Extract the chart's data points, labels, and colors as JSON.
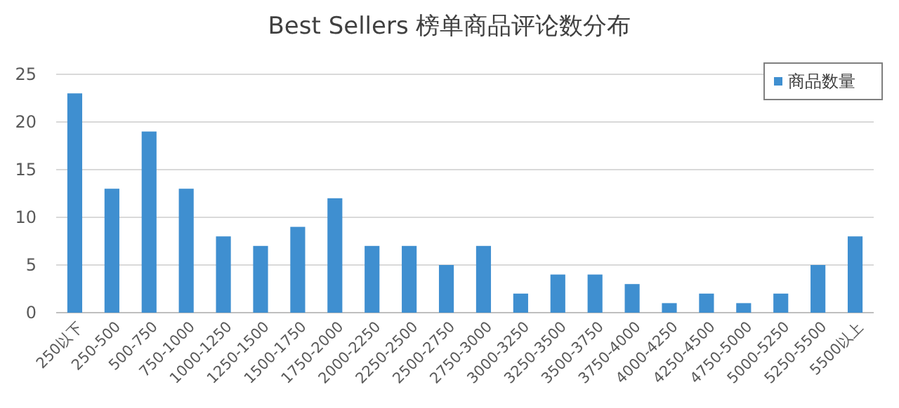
{
  "chart_data": {
    "type": "bar",
    "title": "Best Sellers 榜单商品评论数分布",
    "categories": [
      "250以下",
      "250-500",
      "500-750",
      "750-1000",
      "1000-1250",
      "1250-1500",
      "1500-1750",
      "1750-2000",
      "2000-2250",
      "2250-2500",
      "2500-2750",
      "2750-3000",
      "3000-3250",
      "3250-3500",
      "3500-3750",
      "3750-4000",
      "4000-4250",
      "4250-4500",
      "4750-5000",
      "5000-5250",
      "5250-5500",
      "5500以上"
    ],
    "series": [
      {
        "name": "商品数量",
        "color": "#3f8fd0",
        "values": [
          23,
          13,
          19,
          13,
          8,
          7,
          9,
          12,
          7,
          7,
          5,
          7,
          2,
          4,
          4,
          3,
          1,
          2,
          1,
          2,
          5,
          8
        ]
      }
    ],
    "ylim": [
      0,
      25
    ],
    "yticks": [
      0,
      5,
      10,
      15,
      20,
      25
    ],
    "grid": "y",
    "legend": "top right"
  }
}
